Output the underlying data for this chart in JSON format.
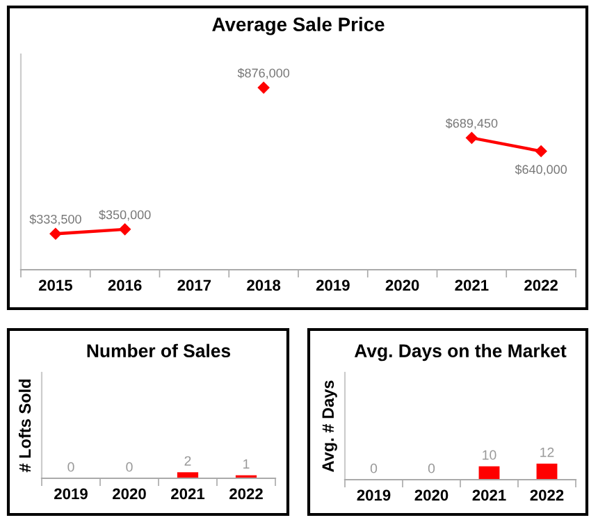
{
  "chart_data": [
    {
      "type": "line",
      "title": "Average Sale Price",
      "categories": [
        "2015",
        "2016",
        "2017",
        "2018",
        "2019",
        "2020",
        "2021",
        "2022"
      ],
      "series": [
        {
          "color": "#ff0000",
          "values": [
            333500,
            350000,
            null,
            876000,
            null,
            null,
            689450,
            640000
          ],
          "value_labels": [
            "$333,500",
            "$350,000",
            null,
            "$876,000",
            null,
            null,
            "$689,450",
            "$640,000"
          ]
        }
      ],
      "ylim": [
        200000,
        1000000
      ],
      "marker": "diamond",
      "line_style": "solid",
      "tick_labels": "x",
      "grid": false,
      "legend": false
    },
    {
      "type": "bar",
      "title": "Number of Sales",
      "ylabel": "# Lofts Sold",
      "categories": [
        "2019",
        "2020",
        "2021",
        "2022"
      ],
      "series": [
        {
          "color": "#ff0000",
          "values": [
            0,
            0,
            2,
            1
          ]
        }
      ],
      "ylim": [
        0,
        35
      ],
      "data_labels": true,
      "tick_labels": "x",
      "grid": false,
      "legend": false
    },
    {
      "type": "bar",
      "title": "Avg. Days on the Market",
      "ylabel": "Avg. # Days",
      "categories": [
        "2019",
        "2020",
        "2021",
        "2022"
      ],
      "series": [
        {
          "color": "#ff0000",
          "values": [
            0,
            0,
            10,
            12
          ]
        }
      ],
      "ylim": [
        0,
        80
      ],
      "data_labels": true,
      "tick_labels": "x",
      "grid": false,
      "legend": false
    }
  ]
}
